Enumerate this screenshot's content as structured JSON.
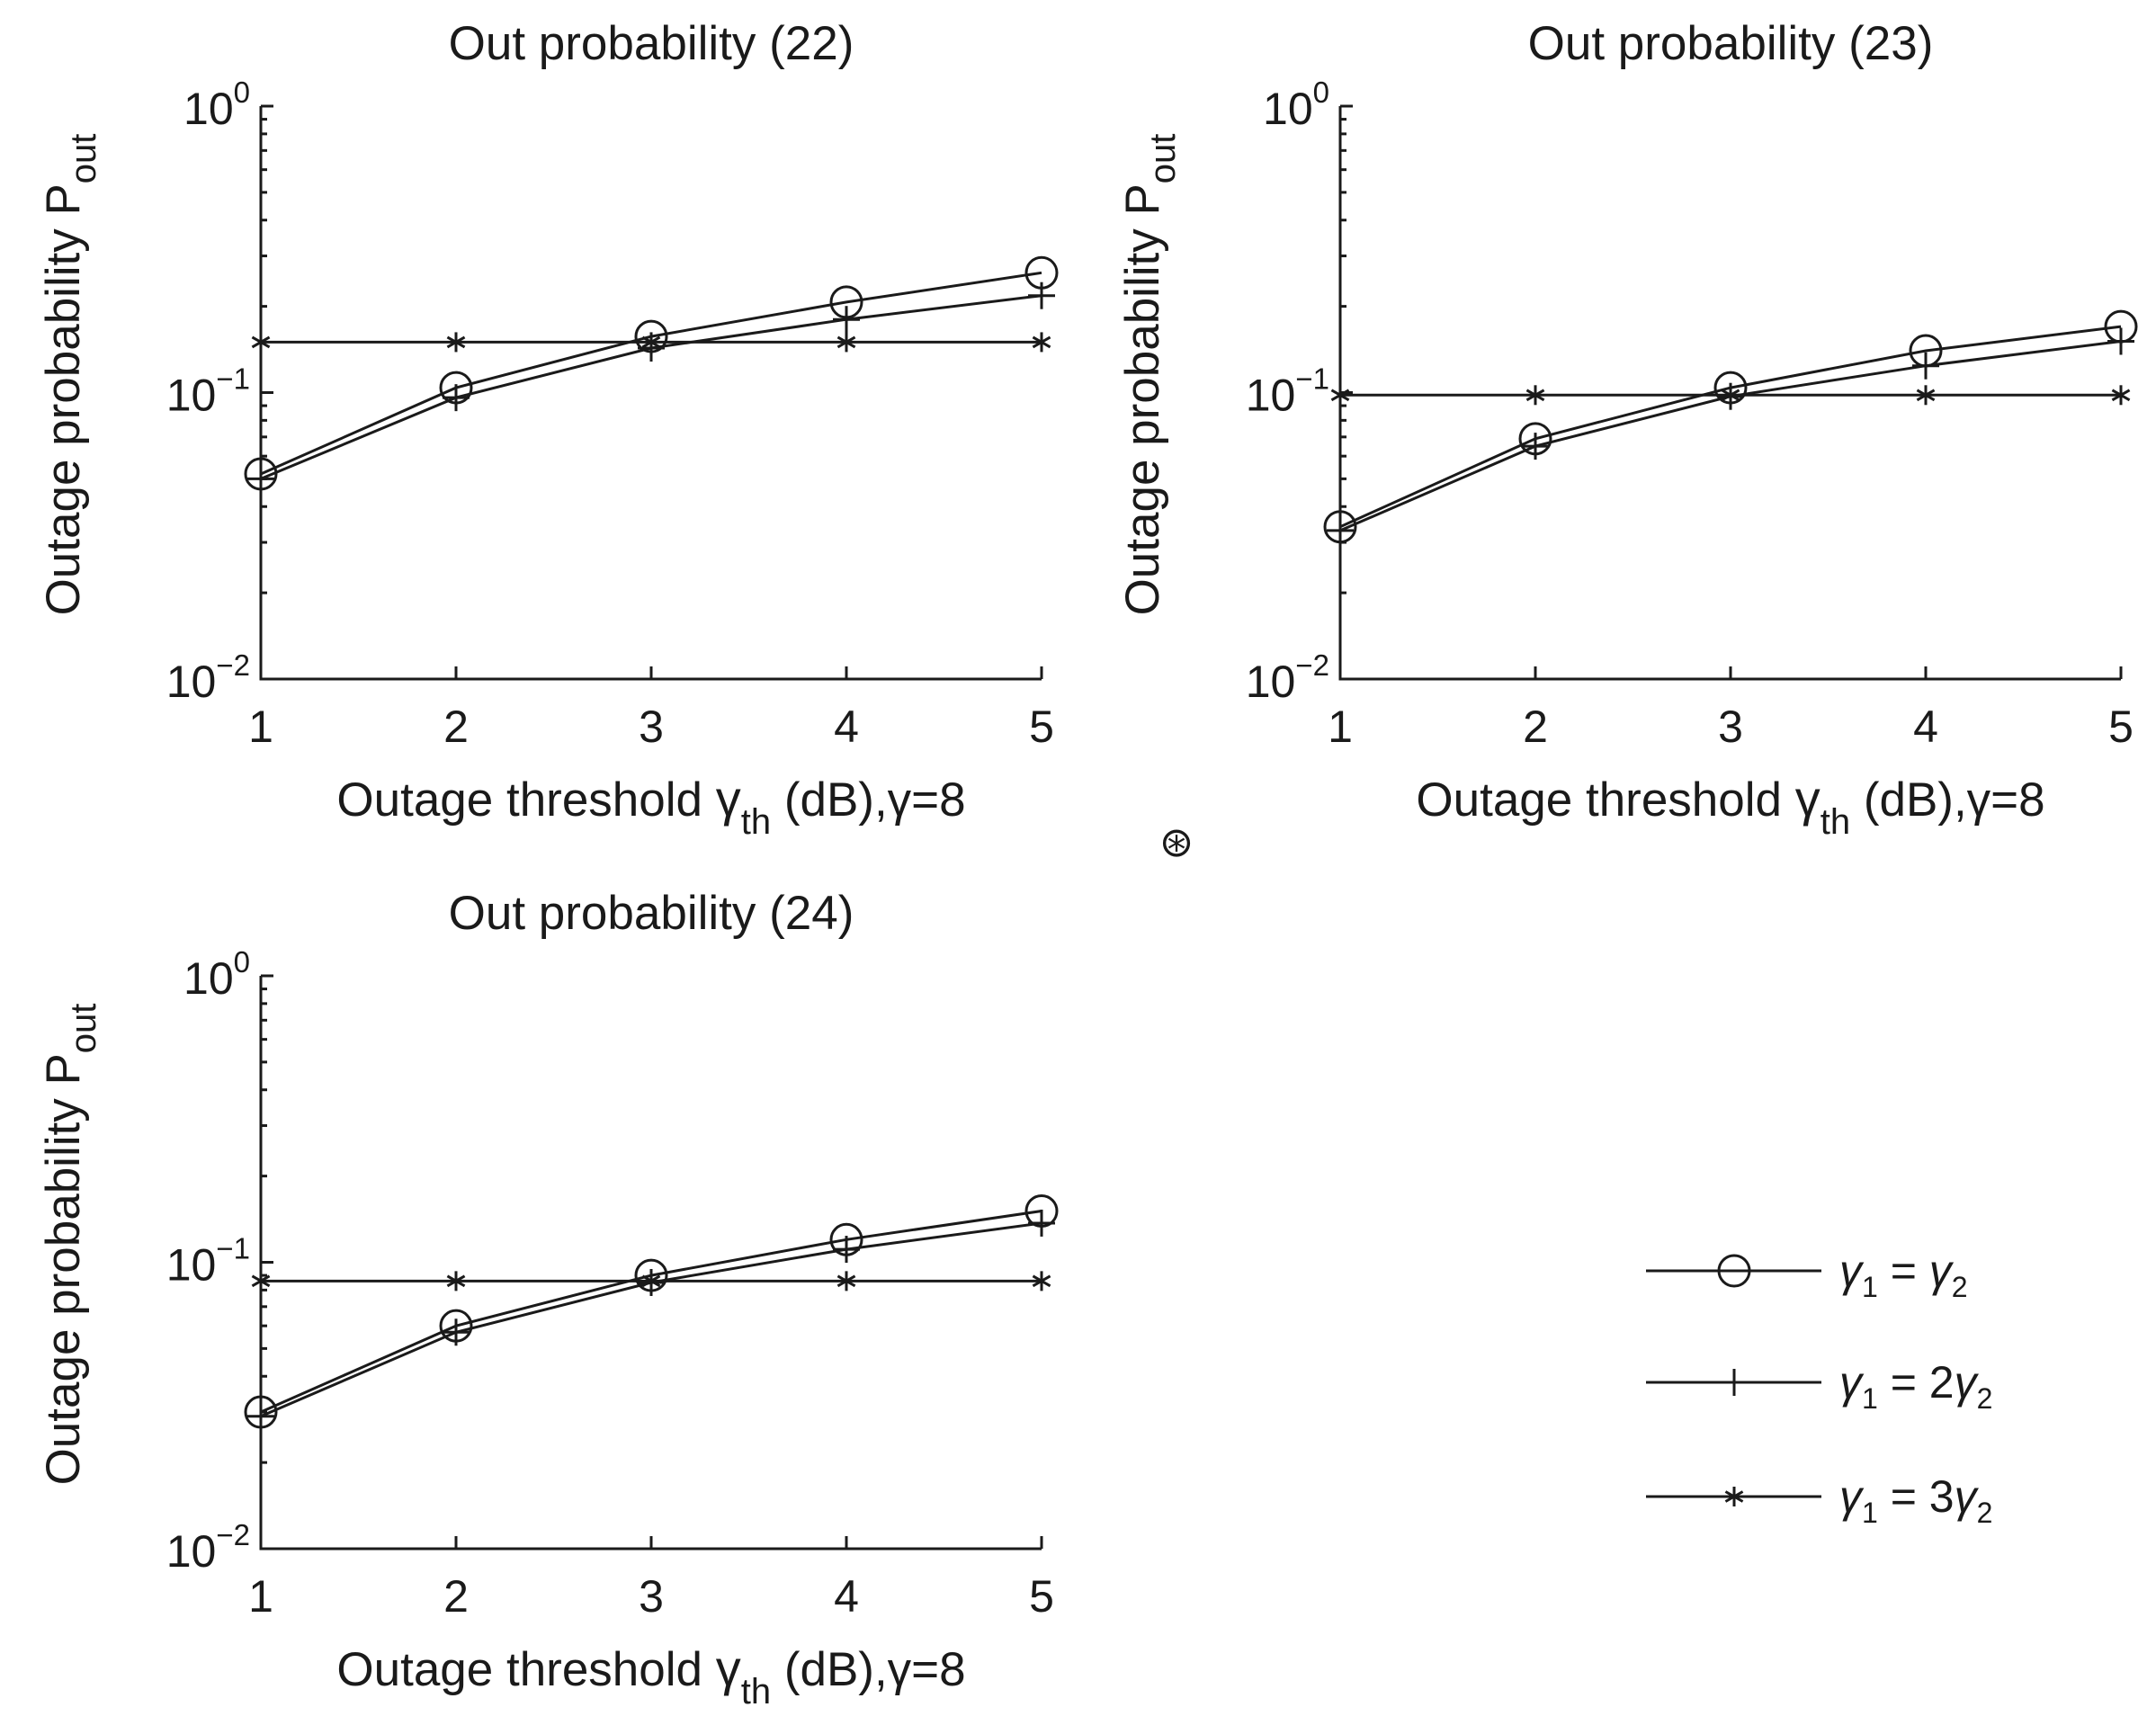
{
  "chart_data": [
    {
      "type": "line",
      "title": "Out probability (22)",
      "xlabel": "Outage threshold γth (dB),γ=8",
      "ylabel": "Outage probability Pout",
      "yscale": "log",
      "xlim": [
        1,
        5
      ],
      "ylim": [
        0.01,
        1
      ],
      "x": [
        1,
        2,
        3,
        4,
        5
      ],
      "x_tick_labels": [
        "1",
        "2",
        "3",
        "4",
        "5"
      ],
      "y_tick_labels": [
        "10-2",
        "10-1",
        "100"
      ],
      "series": [
        {
          "name": "γ1 = γ2",
          "marker": "circle",
          "values": [
            0.052,
            0.104,
            0.157,
            0.207,
            0.262
          ]
        },
        {
          "name": "γ1 = 2γ2",
          "marker": "plus",
          "values": [
            0.05,
            0.096,
            0.143,
            0.18,
            0.218
          ]
        },
        {
          "name": "γ1 = 3γ2",
          "marker": "star",
          "values": [
            0.15,
            0.15,
            0.15,
            0.15,
            0.15
          ]
        }
      ]
    },
    {
      "type": "line",
      "title": "Out probability (23)",
      "xlabel": "Outage threshold γth (dB),γ=8",
      "ylabel": "Outage probability Pout",
      "yscale": "log",
      "xlim": [
        1,
        5
      ],
      "ylim": [
        0.01,
        1
      ],
      "x": [
        1,
        2,
        3,
        4,
        5
      ],
      "x_tick_labels": [
        "1",
        "2",
        "3",
        "4",
        "5"
      ],
      "y_tick_labels": [
        "10-2",
        "10-1",
        "100"
      ],
      "series": [
        {
          "name": "γ1 = γ2",
          "marker": "circle",
          "values": [
            0.034,
            0.069,
            0.104,
            0.14,
            0.17
          ]
        },
        {
          "name": "γ1 = 2γ2",
          "marker": "plus",
          "values": [
            0.033,
            0.065,
            0.097,
            0.124,
            0.151
          ]
        },
        {
          "name": "γ1 = 3γ2",
          "marker": "star",
          "values": [
            0.098,
            0.098,
            0.098,
            0.098,
            0.098
          ]
        }
      ]
    },
    {
      "type": "line",
      "title": "Out probability (24)",
      "xlabel": "Outage threshold γth (dB),γ=8",
      "ylabel": "Outage probability Pout",
      "yscale": "log",
      "xlim": [
        1,
        5
      ],
      "ylim": [
        0.01,
        1
      ],
      "x": [
        1,
        2,
        3,
        4,
        5
      ],
      "x_tick_labels": [
        "1",
        "2",
        "3",
        "4",
        "5"
      ],
      "y_tick_labels": [
        "10-2",
        "10-1",
        "100"
      ],
      "series": [
        {
          "name": "γ1 = γ2",
          "marker": "circle",
          "values": [
            0.03,
            0.06,
            0.09,
            0.12,
            0.151
          ]
        },
        {
          "name": "γ1 = 2γ2",
          "marker": "plus",
          "values": [
            0.029,
            0.057,
            0.085,
            0.111,
            0.137
          ]
        },
        {
          "name": "γ1 = 3γ2",
          "marker": "star",
          "values": [
            0.086,
            0.086,
            0.086,
            0.086,
            0.086
          ]
        }
      ]
    }
  ],
  "legend": {
    "placement": "bottom-right",
    "entries": [
      {
        "marker": "circle",
        "lhs": "γ",
        "lhs_sub": "1",
        "eq": " = ",
        "coef": "",
        "rhs": "γ",
        "rhs_sub": "2"
      },
      {
        "marker": "plus",
        "lhs": "γ",
        "lhs_sub": "1",
        "eq": " = ",
        "coef": "2",
        "rhs": "γ",
        "rhs_sub": "2"
      },
      {
        "marker": "star",
        "lhs": "γ",
        "lhs_sub": "1",
        "eq": " = ",
        "coef": "3",
        "rhs": "γ",
        "rhs_sub": "2"
      }
    ]
  },
  "stray_symbol": "⊛",
  "colors": {
    "ink": "#1a1a1a",
    "background": "#ffffff"
  }
}
